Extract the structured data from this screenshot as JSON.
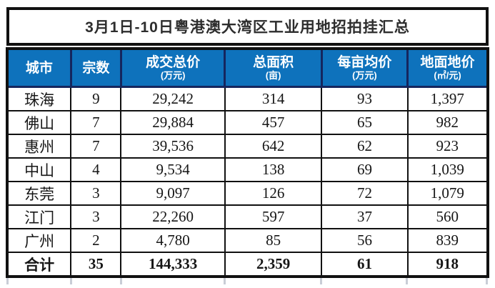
{
  "chart_data": {
    "type": "table",
    "title": "3月1日-10日粤港澳大湾区工业用地招拍挂汇总",
    "columns": [
      {
        "label": "城市",
        "unit": ""
      },
      {
        "label": "宗数",
        "unit": ""
      },
      {
        "label": "成交总价",
        "unit": "(万元)"
      },
      {
        "label": "总面积",
        "unit": "(亩)"
      },
      {
        "label": "每亩均价",
        "unit": "(万元)"
      },
      {
        "label": "地面地价",
        "unit": "(㎡/元)"
      }
    ],
    "rows": [
      [
        "珠海",
        "9",
        "29,242",
        "314",
        "93",
        "1,397"
      ],
      [
        "佛山",
        "7",
        "29,884",
        "457",
        "65",
        "982"
      ],
      [
        "惠州",
        "7",
        "39,536",
        "642",
        "62",
        "923"
      ],
      [
        "中山",
        "4",
        "9,534",
        "138",
        "69",
        "1,039"
      ],
      [
        "东莞",
        "3",
        "9,097",
        "126",
        "72",
        "1,079"
      ],
      [
        "江门",
        "3",
        "22,260",
        "597",
        "37",
        "560"
      ],
      [
        "广州",
        "2",
        "4,780",
        "85",
        "56",
        "839"
      ]
    ],
    "total_row": [
      "合计",
      "35",
      "144,333",
      "2,359",
      "61",
      "918"
    ],
    "layout": {
      "legend": "none",
      "grid": "full-borders"
    },
    "colors": {
      "header_bg": "#0e72bc",
      "header_divider": "#15265e",
      "header_text": "#ffffff",
      "border": "#111111",
      "title_text": "#2d2d2d",
      "body_text": "#161616",
      "cutoff_line": "#c9cdd6"
    }
  }
}
